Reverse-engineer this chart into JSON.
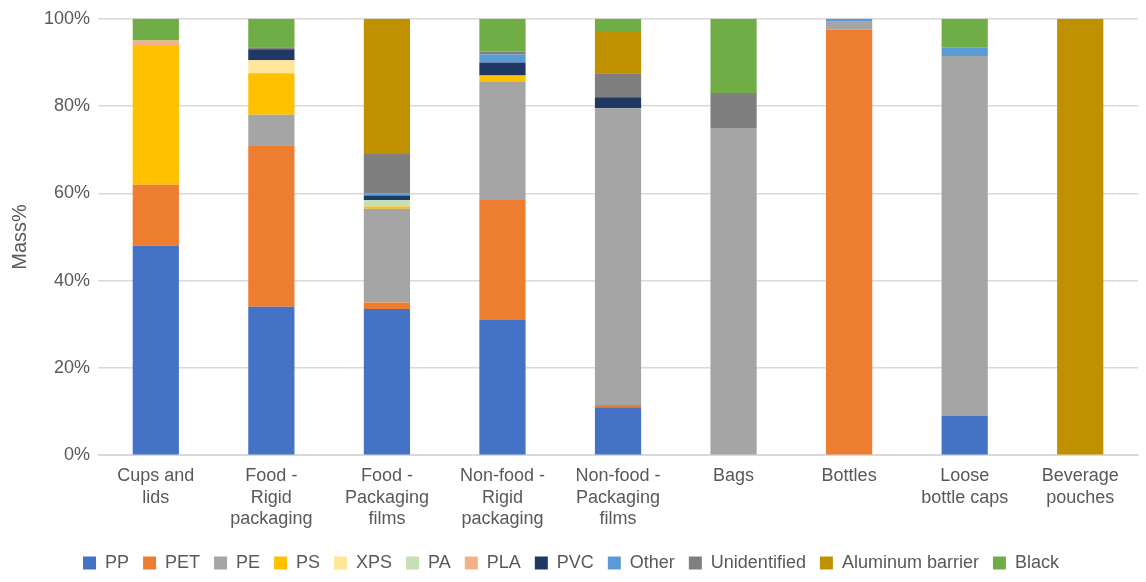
{
  "chart_data": {
    "type": "bar",
    "stacked": true,
    "ylabel": "Mass%",
    "categories": [
      "Cups and lids",
      "Food - Rigid packaging",
      "Food - Packaging films",
      "Non-food - Rigid packaging",
      "Non-food - Packaging films",
      "Bags",
      "Bottles",
      "Loose bottle caps",
      "Beverage pouches"
    ],
    "series": [
      {
        "name": "PP",
        "color": "#4472c4",
        "values": [
          48,
          34,
          33.5,
          31,
          11,
          0,
          0,
          9,
          0
        ]
      },
      {
        "name": "PET",
        "color": "#ed7d31",
        "values": [
          14,
          37,
          1.5,
          27.5,
          0.5,
          0,
          97.5,
          0,
          0
        ]
      },
      {
        "name": "PE",
        "color": "#a5a5a5",
        "values": [
          0,
          7,
          21.5,
          27,
          68,
          75,
          1.8,
          82.5,
          0
        ]
      },
      {
        "name": "PS",
        "color": "#ffc000",
        "values": [
          32,
          9.5,
          0.5,
          1.5,
          0,
          0,
          0,
          0,
          0
        ]
      },
      {
        "name": "XPS",
        "color": "#ffe699",
        "values": [
          0,
          3,
          0,
          0,
          0,
          0,
          0,
          0,
          0
        ]
      },
      {
        "name": "PA",
        "color": "#c5e0b4",
        "values": [
          0,
          0,
          1.5,
          0,
          0,
          0,
          0,
          0,
          0
        ]
      },
      {
        "name": "PLA",
        "color": "#f4b183",
        "values": [
          1,
          0,
          0,
          0,
          0,
          0,
          0,
          0,
          0
        ]
      },
      {
        "name": "PVC",
        "color": "#203864",
        "values": [
          0,
          2.5,
          1,
          3,
          2.5,
          0,
          0,
          0,
          0
        ]
      },
      {
        "name": "Other",
        "color": "#5b9bd5",
        "values": [
          0,
          0,
          0.5,
          1.8,
          0,
          0,
          0.7,
          2,
          0
        ]
      },
      {
        "name": "Unidentified",
        "color": "#7f7f7f",
        "values": [
          0,
          0.5,
          9,
          0.7,
          5.5,
          8,
          0,
          0,
          0
        ]
      },
      {
        "name": "Aluminum barrier",
        "color": "#bf9000",
        "values": [
          0,
          0,
          31,
          0,
          9.5,
          0,
          0,
          0,
          100
        ]
      },
      {
        "name": "Black",
        "color": "#70ad47",
        "values": [
          5,
          6.5,
          0,
          7.5,
          3,
          17,
          0,
          6.5,
          0
        ]
      }
    ],
    "ylim": [
      0,
      100
    ],
    "yticks": [
      {
        "value": 0,
        "label": "0%"
      },
      {
        "value": 20,
        "label": "20%"
      },
      {
        "value": 40,
        "label": "40%"
      },
      {
        "value": 60,
        "label": "60%"
      },
      {
        "value": 80,
        "label": "80%"
      },
      {
        "value": 100,
        "label": "100%"
      }
    ],
    "grid": "y",
    "legend": "bottom"
  }
}
